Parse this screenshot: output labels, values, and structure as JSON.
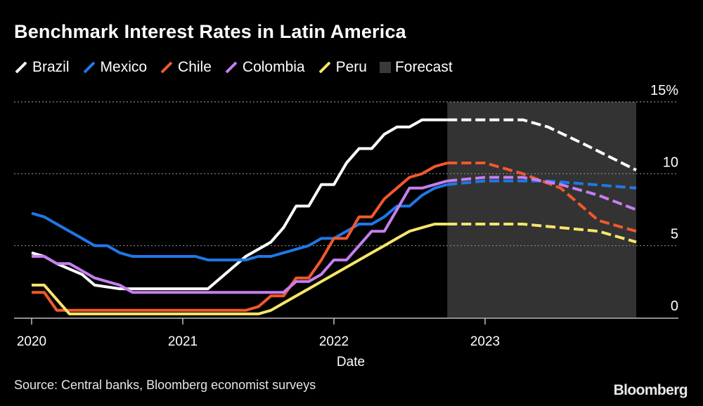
{
  "chart_data": {
    "type": "line",
    "title": "Benchmark Interest Rates in Latin America",
    "xlabel": "Date",
    "ylabel": "",
    "ylim": [
      0,
      15
    ],
    "y_ticks": [
      "0",
      "5",
      "10",
      "15%"
    ],
    "y_tick_values": [
      0,
      5,
      10,
      15
    ],
    "x_ticks": [
      "2020",
      "2021",
      "2022",
      "2023"
    ],
    "grid": true,
    "legend_position": "top-left",
    "forecast": {
      "label": "Forecast",
      "start": "2022-10",
      "end": "2024-01",
      "color": "#333333"
    },
    "series": [
      {
        "name": "Brazil",
        "color": "#ffffff",
        "points": [
          [
            "2020-01",
            4.5
          ],
          [
            "2020-02",
            4.25
          ],
          [
            "2020-03",
            3.75
          ],
          [
            "2020-05",
            3.0
          ],
          [
            "2020-06",
            2.25
          ],
          [
            "2020-08",
            2.0
          ],
          [
            "2021-03",
            2.0
          ],
          [
            "2021-04",
            2.75
          ],
          [
            "2021-05",
            3.5
          ],
          [
            "2021-06",
            4.25
          ],
          [
            "2021-08",
            5.25
          ],
          [
            "2021-09",
            6.25
          ],
          [
            "2021-10",
            7.75
          ],
          [
            "2021-11",
            7.75
          ],
          [
            "2021-12",
            9.25
          ],
          [
            "2022-01",
            9.25
          ],
          [
            "2022-02",
            10.75
          ],
          [
            "2022-03",
            11.75
          ],
          [
            "2022-04",
            11.75
          ],
          [
            "2022-05",
            12.75
          ],
          [
            "2022-06",
            13.25
          ],
          [
            "2022-07",
            13.25
          ],
          [
            "2022-08",
            13.75
          ],
          [
            "2022-10",
            13.75
          ],
          [
            "2023-04",
            13.75
          ],
          [
            "2023-06",
            13.25
          ],
          [
            "2023-09",
            12.0
          ],
          [
            "2024-01",
            10.25
          ]
        ]
      },
      {
        "name": "Mexico",
        "color": "#1f78e8",
        "points": [
          [
            "2020-01",
            7.25
          ],
          [
            "2020-02",
            7.0
          ],
          [
            "2020-03",
            6.5
          ],
          [
            "2020-04",
            6.0
          ],
          [
            "2020-05",
            5.5
          ],
          [
            "2020-06",
            5.0
          ],
          [
            "2020-07",
            5.0
          ],
          [
            "2020-08",
            4.5
          ],
          [
            "2020-09",
            4.25
          ],
          [
            "2021-02",
            4.25
          ],
          [
            "2021-03",
            4.0
          ],
          [
            "2021-06",
            4.0
          ],
          [
            "2021-07",
            4.25
          ],
          [
            "2021-08",
            4.25
          ],
          [
            "2021-09",
            4.5
          ],
          [
            "2021-10",
            4.75
          ],
          [
            "2021-11",
            5.0
          ],
          [
            "2021-12",
            5.5
          ],
          [
            "2022-01",
            5.5
          ],
          [
            "2022-02",
            6.0
          ],
          [
            "2022-03",
            6.5
          ],
          [
            "2022-04",
            6.5
          ],
          [
            "2022-05",
            7.0
          ],
          [
            "2022-06",
            7.75
          ],
          [
            "2022-07",
            7.75
          ],
          [
            "2022-08",
            8.5
          ],
          [
            "2022-09",
            9.0
          ],
          [
            "2022-10",
            9.25
          ],
          [
            "2023-01",
            9.5
          ],
          [
            "2023-06",
            9.5
          ],
          [
            "2024-01",
            9.0
          ]
        ]
      },
      {
        "name": "Chile",
        "color": "#f2582c",
        "points": [
          [
            "2020-01",
            1.75
          ],
          [
            "2020-02",
            1.75
          ],
          [
            "2020-03",
            0.5
          ],
          [
            "2021-06",
            0.5
          ],
          [
            "2021-07",
            0.75
          ],
          [
            "2021-08",
            1.5
          ],
          [
            "2021-09",
            1.5
          ],
          [
            "2021-10",
            2.75
          ],
          [
            "2021-11",
            2.75
          ],
          [
            "2021-12",
            4.0
          ],
          [
            "2022-01",
            5.5
          ],
          [
            "2022-02",
            5.5
          ],
          [
            "2022-03",
            7.0
          ],
          [
            "2022-04",
            7.0
          ],
          [
            "2022-05",
            8.25
          ],
          [
            "2022-06",
            9.0
          ],
          [
            "2022-07",
            9.75
          ],
          [
            "2022-08",
            10.0
          ],
          [
            "2022-09",
            10.5
          ],
          [
            "2022-10",
            10.75
          ],
          [
            "2023-01",
            10.75
          ],
          [
            "2023-04",
            10.0
          ],
          [
            "2023-07",
            9.0
          ],
          [
            "2023-10",
            6.75
          ],
          [
            "2024-01",
            6.0
          ]
        ]
      },
      {
        "name": "Colombia",
        "color": "#c77ef0",
        "points": [
          [
            "2020-01",
            4.25
          ],
          [
            "2020-02",
            4.25
          ],
          [
            "2020-03",
            3.75
          ],
          [
            "2020-04",
            3.75
          ],
          [
            "2020-05",
            3.25
          ],
          [
            "2020-06",
            2.75
          ],
          [
            "2020-07",
            2.5
          ],
          [
            "2020-08",
            2.25
          ],
          [
            "2020-09",
            1.75
          ],
          [
            "2021-08",
            1.75
          ],
          [
            "2021-09",
            1.75
          ],
          [
            "2021-10",
            2.5
          ],
          [
            "2021-11",
            2.5
          ],
          [
            "2021-12",
            3.0
          ],
          [
            "2022-01",
            4.0
          ],
          [
            "2022-02",
            4.0
          ],
          [
            "2022-03",
            5.0
          ],
          [
            "2022-04",
            6.0
          ],
          [
            "2022-05",
            6.0
          ],
          [
            "2022-06",
            7.5
          ],
          [
            "2022-07",
            9.0
          ],
          [
            "2022-08",
            9.0
          ],
          [
            "2022-09",
            9.25
          ],
          [
            "2022-10",
            9.5
          ],
          [
            "2023-01",
            9.75
          ],
          [
            "2023-04",
            9.75
          ],
          [
            "2023-07",
            9.25
          ],
          [
            "2023-10",
            8.5
          ],
          [
            "2024-01",
            7.5
          ]
        ]
      },
      {
        "name": "Peru",
        "color": "#f7e56a",
        "points": [
          [
            "2020-01",
            2.25
          ],
          [
            "2020-02",
            2.25
          ],
          [
            "2020-03",
            1.25
          ],
          [
            "2020-04",
            0.25
          ],
          [
            "2021-07",
            0.25
          ],
          [
            "2021-08",
            0.5
          ],
          [
            "2021-09",
            1.0
          ],
          [
            "2021-10",
            1.5
          ],
          [
            "2021-11",
            2.0
          ],
          [
            "2021-12",
            2.5
          ],
          [
            "2022-01",
            3.0
          ],
          [
            "2022-02",
            3.5
          ],
          [
            "2022-03",
            4.0
          ],
          [
            "2022-04",
            4.5
          ],
          [
            "2022-05",
            5.0
          ],
          [
            "2022-06",
            5.5
          ],
          [
            "2022-07",
            6.0
          ],
          [
            "2022-08",
            6.25
          ],
          [
            "2022-09",
            6.5
          ],
          [
            "2022-10",
            6.5
          ],
          [
            "2023-01",
            6.5
          ],
          [
            "2023-04",
            6.5
          ],
          [
            "2023-07",
            6.25
          ],
          [
            "2023-10",
            6.0
          ],
          [
            "2024-01",
            5.25
          ]
        ]
      }
    ]
  },
  "source": "Source: Central banks, Bloomberg economist surveys",
  "logo": "Bloomberg"
}
